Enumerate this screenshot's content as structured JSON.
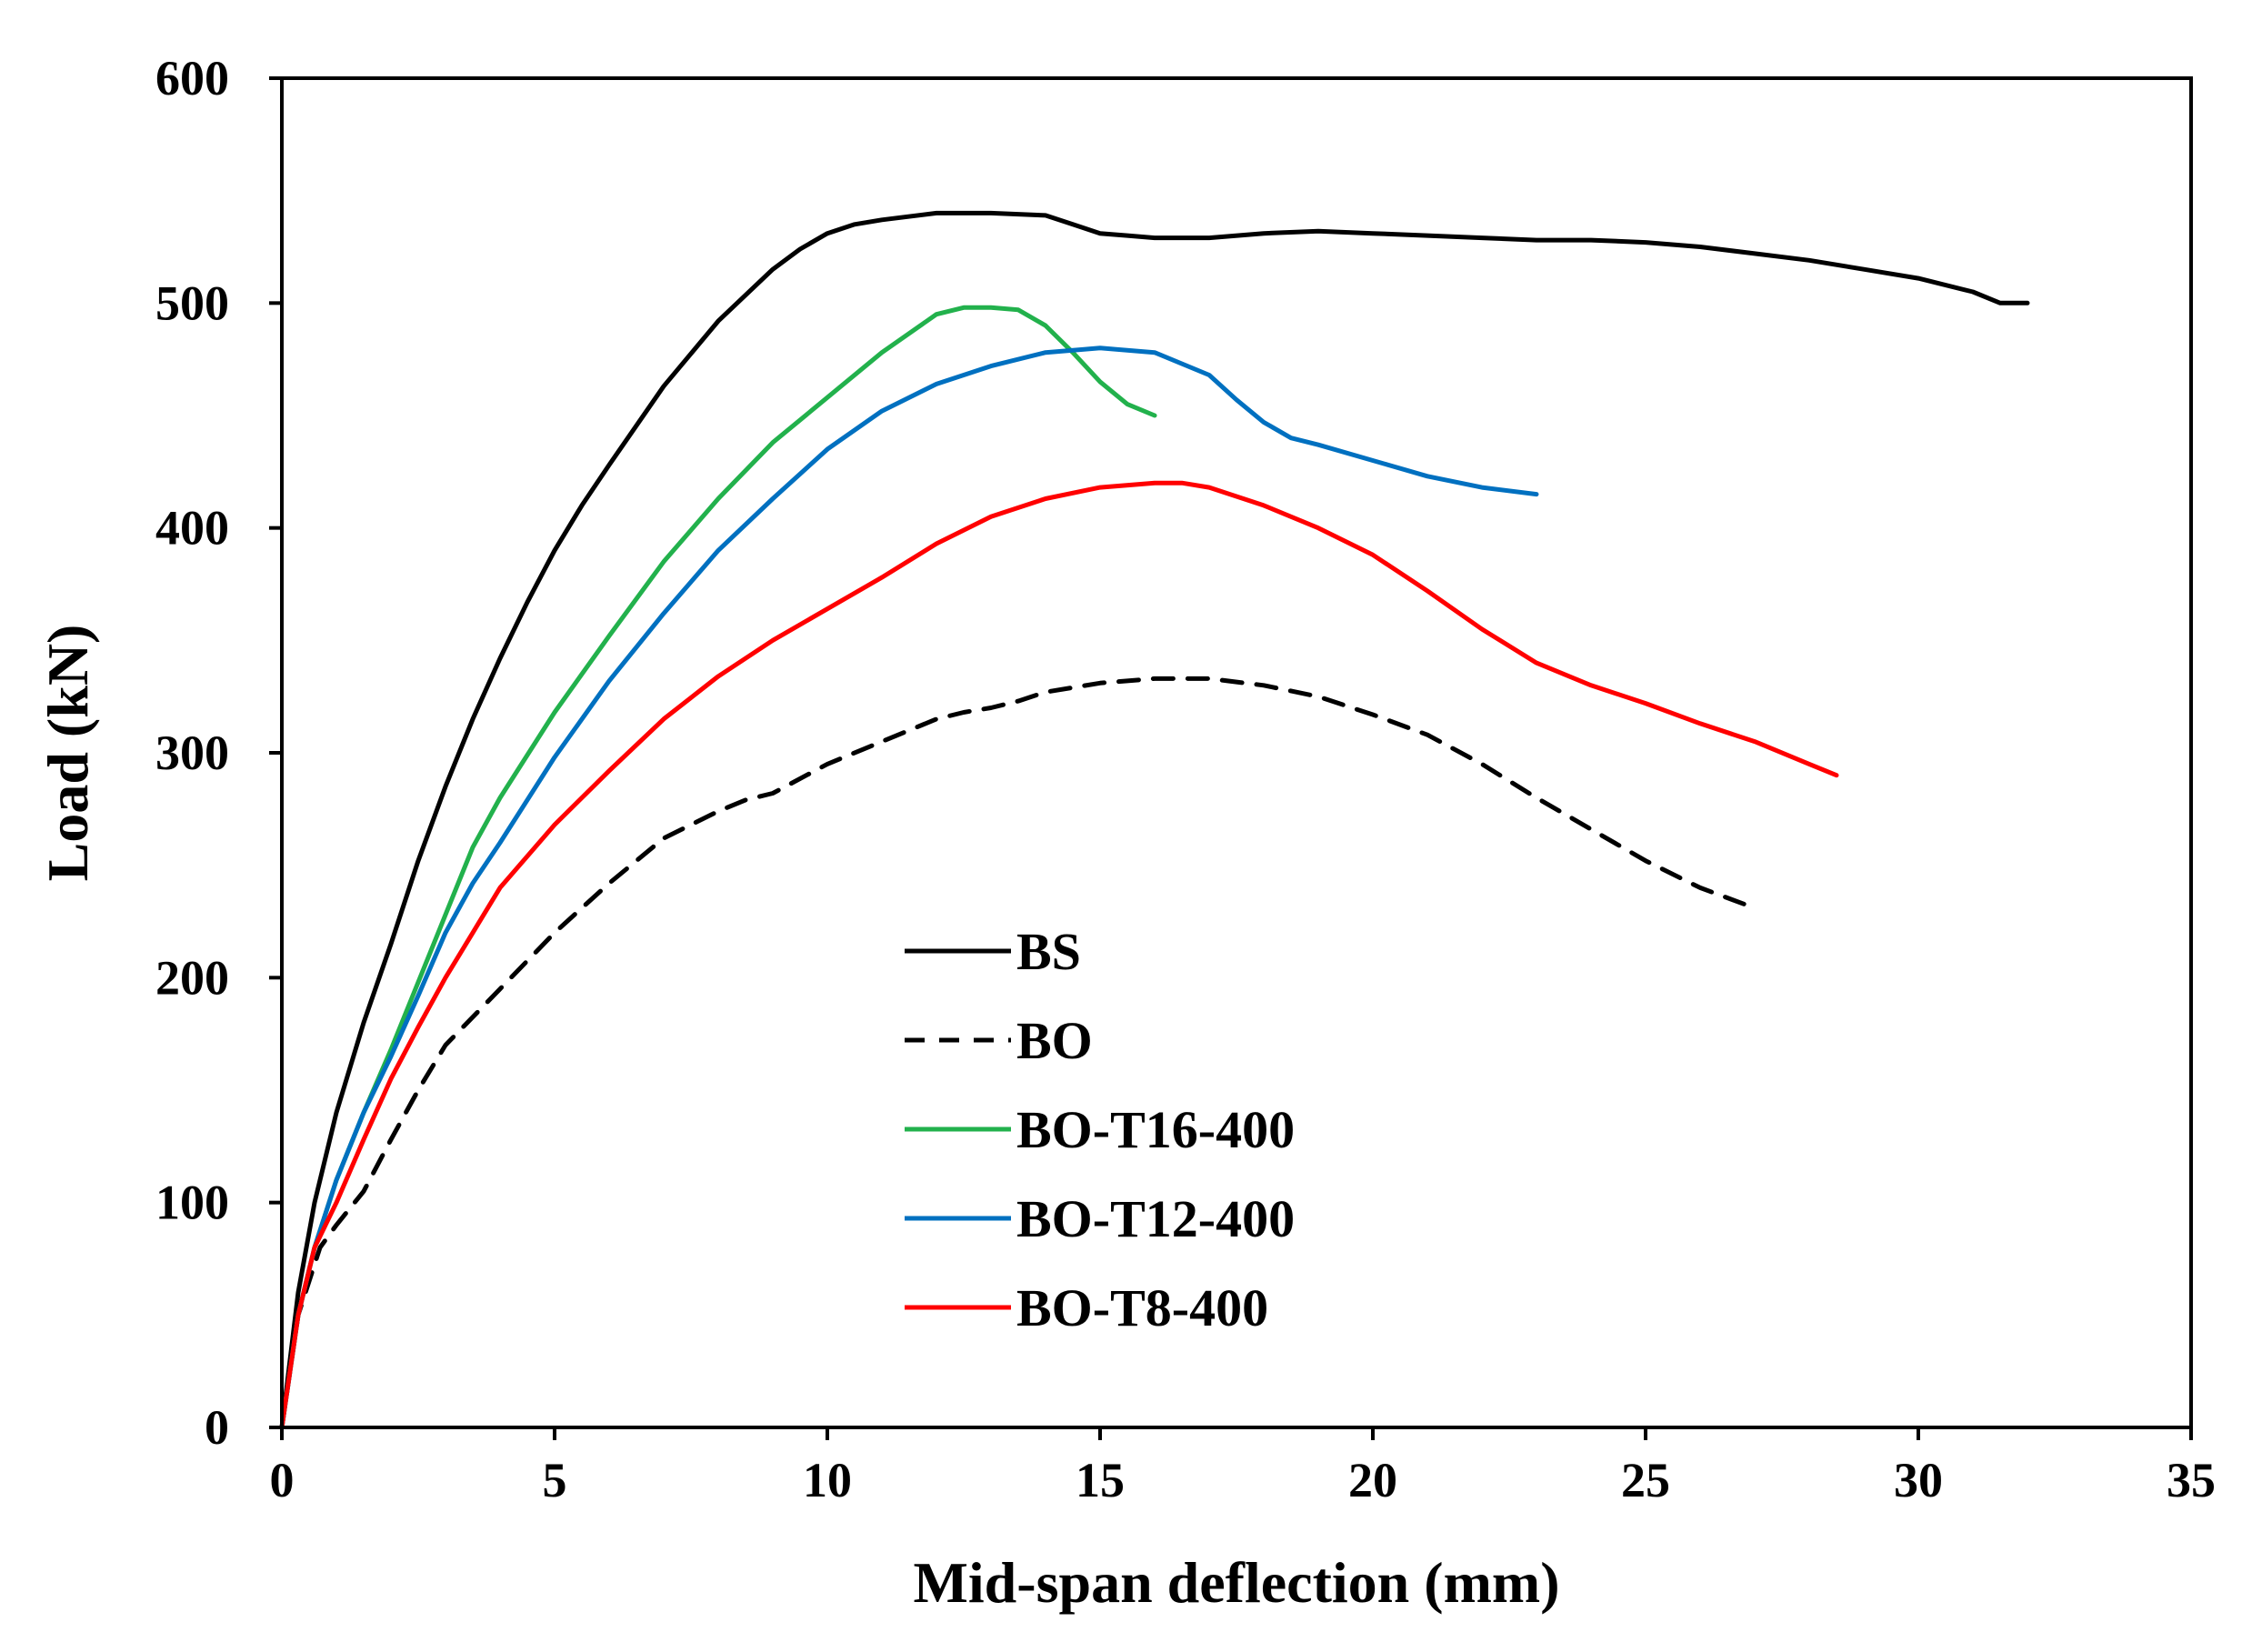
{
  "chart_data": {
    "type": "line",
    "title": "",
    "xlabel": "Mid-span deflection (mm)",
    "ylabel": "Load (kN)",
    "xlim": [
      0,
      35
    ],
    "ylim": [
      0,
      600
    ],
    "xticks": [
      0,
      5,
      10,
      15,
      20,
      25,
      30,
      35
    ],
    "yticks": [
      0,
      100,
      200,
      300,
      400,
      500,
      600
    ],
    "grid": false,
    "legend_position": "center",
    "series": [
      {
        "name": "BS",
        "color": "#000000",
        "dash": "solid",
        "x": [
          0,
          0.3,
          0.6,
          1.0,
          1.5,
          2.0,
          2.5,
          3.0,
          3.5,
          4.0,
          4.5,
          5.0,
          5.5,
          6.0,
          7.0,
          8.0,
          9.0,
          9.5,
          10.0,
          10.5,
          11.0,
          12.0,
          13.0,
          14.0,
          14.5,
          15.0,
          15.5,
          16.0,
          17.0,
          18.0,
          19.0,
          20.0,
          21.0,
          22.0,
          23.0,
          24.0,
          25.0,
          26.0,
          27.0,
          28.0,
          29.0,
          30.0,
          31.0,
          31.5,
          32.0
        ],
        "y": [
          0,
          60,
          100,
          140,
          180,
          215,
          252,
          285,
          315,
          342,
          367,
          390,
          410,
          428,
          463,
          492,
          515,
          524,
          531,
          535,
          537,
          540,
          540,
          539,
          535,
          531,
          530,
          529,
          529,
          531,
          532,
          531,
          530,
          529,
          528,
          528,
          527,
          525,
          522,
          519,
          515,
          511,
          505,
          500,
          500
        ]
      },
      {
        "name": "BO",
        "color": "#000000",
        "dash": "dashed",
        "x": [
          0,
          0.3,
          0.7,
          1.0,
          1.5,
          2.0,
          2.5,
          3.0,
          4.0,
          5.0,
          6.0,
          7.0,
          7.5,
          8.0,
          8.5,
          9.0,
          10.0,
          11.0,
          12.0,
          12.5,
          13.0,
          13.5,
          14.0,
          15.0,
          16.0,
          17.0,
          18.0,
          19.0,
          20.0,
          21.0,
          22.0,
          23.0,
          24.0,
          25.0,
          26.0,
          27.0
        ],
        "y": [
          0,
          50,
          80,
          90,
          105,
          128,
          150,
          170,
          195,
          220,
          242,
          262,
          268,
          274,
          279,
          282,
          295,
          305,
          315,
          318,
          320,
          323,
          327,
          331,
          333,
          333,
          330,
          325,
          317,
          308,
          295,
          280,
          266,
          252,
          240,
          231
        ]
      },
      {
        "name": "BO-T16-400",
        "color": "#22b14c",
        "dash": "solid",
        "x": [
          0,
          0.3,
          0.6,
          1.0,
          1.5,
          2.0,
          2.5,
          3.0,
          3.5,
          4.0,
          5.0,
          6.0,
          7.0,
          8.0,
          9.0,
          10.0,
          11.0,
          12.0,
          12.5,
          13.0,
          13.5,
          14.0,
          14.5,
          15.0,
          15.5,
          16.0
        ],
        "y": [
          0,
          50,
          80,
          110,
          140,
          168,
          198,
          228,
          258,
          280,
          318,
          352,
          385,
          413,
          438,
          458,
          478,
          495,
          498,
          498,
          497,
          490,
          478,
          465,
          455,
          450
        ]
      },
      {
        "name": "BO-T12-400",
        "color": "#0070c0",
        "dash": "solid",
        "x": [
          0,
          0.3,
          0.6,
          1.0,
          1.5,
          2.0,
          2.5,
          3.0,
          3.5,
          4.0,
          5.0,
          6.0,
          7.0,
          8.0,
          9.0,
          10.0,
          11.0,
          12.0,
          13.0,
          14.0,
          15.0,
          16.0,
          17.0,
          17.5,
          18.0,
          18.5,
          19.0,
          20.0,
          21.0,
          22.0,
          23.0
        ],
        "y": [
          0,
          50,
          80,
          110,
          140,
          165,
          192,
          220,
          242,
          260,
          298,
          332,
          362,
          390,
          413,
          435,
          452,
          464,
          472,
          478,
          480,
          478,
          468,
          457,
          447,
          440,
          437,
          430,
          423,
          418,
          415
        ]
      },
      {
        "name": "BO-T8-400",
        "color": "#ff0000",
        "dash": "solid",
        "x": [
          0,
          0.3,
          0.6,
          1.0,
          1.5,
          2.0,
          2.5,
          3.0,
          3.5,
          4.0,
          5.0,
          6.0,
          7.0,
          8.0,
          9.0,
          10.0,
          11.0,
          12.0,
          13.0,
          14.0,
          15.0,
          16.0,
          16.5,
          17.0,
          18.0,
          19.0,
          20.0,
          21.0,
          22.0,
          23.0,
          24.0,
          25.0,
          26.0,
          27.0,
          28.0,
          28.5
        ],
        "y": [
          0,
          50,
          80,
          100,
          128,
          155,
          178,
          200,
          220,
          240,
          268,
          292,
          315,
          334,
          350,
          364,
          378,
          393,
          405,
          413,
          418,
          420,
          420,
          418,
          410,
          400,
          388,
          372,
          355,
          340,
          330,
          322,
          313,
          305,
          295,
          290
        ]
      }
    ]
  }
}
